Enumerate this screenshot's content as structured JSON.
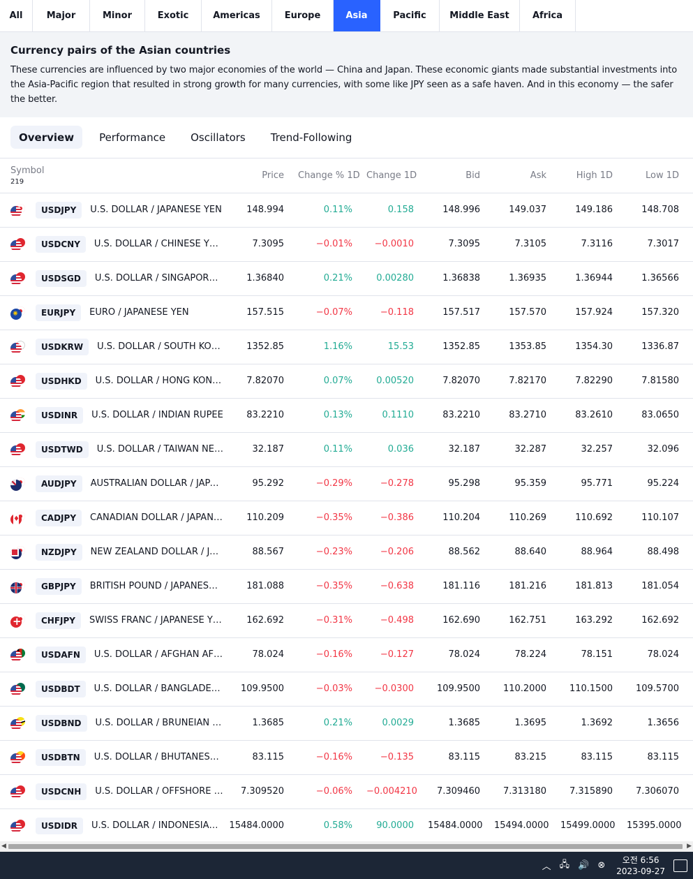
{
  "region_tabs": [
    {
      "label": "All",
      "width": 47,
      "active": false
    },
    {
      "label": "Major",
      "width": 82,
      "active": false
    },
    {
      "label": "Minor",
      "width": 79,
      "active": false
    },
    {
      "label": "Exotic",
      "width": 81,
      "active": false
    },
    {
      "label": "Americas",
      "width": 101,
      "active": false
    },
    {
      "label": "Europe",
      "width": 88,
      "active": false
    },
    {
      "label": "Asia",
      "width": 67,
      "active": true
    },
    {
      "label": "Pacific",
      "width": 85,
      "active": false
    },
    {
      "label": "Middle East",
      "width": 115,
      "active": false
    },
    {
      "label": "Africa",
      "width": 80,
      "active": false
    }
  ],
  "description": {
    "title": "Currency pairs of the Asian countries",
    "text": "These currencies are influenced by two major economies of the world — China and Japan. These economic giants made substantial investments into the Asia-Pacific region that resulted in strong growth for many currencies, with some like JPY seen as a safe haven. And in this economy — the safer the better."
  },
  "view_tabs": [
    {
      "label": "Overview",
      "active": true
    },
    {
      "label": "Performance",
      "active": false
    },
    {
      "label": "Oscillators",
      "active": false
    },
    {
      "label": "Trend-Following",
      "active": false
    }
  ],
  "table": {
    "symbol_header": "Symbol",
    "symbol_count": "219",
    "columns": [
      "Price",
      "Change % 1D",
      "Change 1D",
      "Bid",
      "Ask",
      "High 1D",
      "Low 1D"
    ],
    "rows": [
      {
        "flag1": "f-us",
        "flag2": "c-jp",
        "symbol": "USDJPY",
        "desc": "U.S. DOLLAR / JAPANESE YEN",
        "price": "148.994",
        "chg_pct": "0.11%",
        "chg": "0.158",
        "dir": "pos",
        "bid": "148.996",
        "ask": "149.037",
        "high": "149.186",
        "low": "148.708"
      },
      {
        "flag1": "f-us",
        "flag2": "c-red",
        "symbol": "USDCNY",
        "desc": "U.S. DOLLAR / CHINESE YUAN",
        "price": "7.3095",
        "chg_pct": "−0.01%",
        "chg": "−0.0010",
        "dir": "neg",
        "bid": "7.3095",
        "ask": "7.3105",
        "high": "7.3116",
        "low": "7.3017"
      },
      {
        "flag1": "f-us",
        "flag2": "c-red",
        "symbol": "USDSGD",
        "desc": "U.S. DOLLAR / SINGAPORE D...",
        "price": "1.36840",
        "chg_pct": "0.21%",
        "chg": "0.00280",
        "dir": "pos",
        "bid": "1.36838",
        "ask": "1.36935",
        "high": "1.36944",
        "low": "1.36566"
      },
      {
        "flag1": "f-eu",
        "flag2": "c-jp",
        "symbol": "EURJPY",
        "desc": "EURO / JAPANESE YEN",
        "price": "157.515",
        "chg_pct": "−0.07%",
        "chg": "−0.118",
        "dir": "neg",
        "bid": "157.517",
        "ask": "157.570",
        "high": "157.924",
        "low": "157.320"
      },
      {
        "flag1": "f-us",
        "flag2": "c-kr",
        "symbol": "USDKRW",
        "desc": "U.S. DOLLAR / SOUTH KORE...",
        "price": "1352.85",
        "chg_pct": "1.16%",
        "chg": "15.53",
        "dir": "pos",
        "bid": "1352.85",
        "ask": "1353.85",
        "high": "1354.30",
        "low": "1336.87"
      },
      {
        "flag1": "f-us",
        "flag2": "c-hk",
        "symbol": "USDHKD",
        "desc": "U.S. DOLLAR / HONG KONG ...",
        "price": "7.82070",
        "chg_pct": "0.07%",
        "chg": "0.00520",
        "dir": "pos",
        "bid": "7.82070",
        "ask": "7.82170",
        "high": "7.82290",
        "low": "7.81580"
      },
      {
        "flag1": "f-us",
        "flag2": "c-in",
        "symbol": "USDINR",
        "desc": "U.S. DOLLAR / INDIAN RUPEE",
        "price": "83.2210",
        "chg_pct": "0.13%",
        "chg": "0.1110",
        "dir": "pos",
        "bid": "83.2210",
        "ask": "83.2710",
        "high": "83.2610",
        "low": "83.0650"
      },
      {
        "flag1": "f-us",
        "flag2": "c-tw",
        "symbol": "USDTWD",
        "desc": "U.S. DOLLAR / TAIWAN NEW...",
        "price": "32.187",
        "chg_pct": "0.11%",
        "chg": "0.036",
        "dir": "pos",
        "bid": "32.187",
        "ask": "32.287",
        "high": "32.257",
        "low": "32.096"
      },
      {
        "flag1": "f-au",
        "flag2": "c-jp",
        "symbol": "AUDJPY",
        "desc": "AUSTRALIAN DOLLAR / JAPA...",
        "price": "95.292",
        "chg_pct": "−0.29%",
        "chg": "−0.278",
        "dir": "neg",
        "bid": "95.298",
        "ask": "95.359",
        "high": "95.771",
        "low": "95.224"
      },
      {
        "flag1": "f-ca",
        "flag2": "c-jp",
        "symbol": "CADJPY",
        "desc": "CANADIAN DOLLAR / JAPANE...",
        "price": "110.209",
        "chg_pct": "−0.35%",
        "chg": "−0.386",
        "dir": "neg",
        "bid": "110.204",
        "ask": "110.269",
        "high": "110.692",
        "low": "110.107"
      },
      {
        "flag1": "f-nz",
        "flag2": "c-jp",
        "symbol": "NZDJPY",
        "desc": "NEW ZEALAND DOLLAR / JA...",
        "price": "88.567",
        "chg_pct": "−0.23%",
        "chg": "−0.206",
        "dir": "neg",
        "bid": "88.562",
        "ask": "88.640",
        "high": "88.964",
        "low": "88.498"
      },
      {
        "flag1": "f-gb",
        "flag2": "c-jp",
        "symbol": "GBPJPY",
        "desc": "BRITISH POUND / JAPANESE ...",
        "price": "181.088",
        "chg_pct": "−0.35%",
        "chg": "−0.638",
        "dir": "neg",
        "bid": "181.116",
        "ask": "181.216",
        "high": "181.813",
        "low": "181.054"
      },
      {
        "flag1": "f-ch",
        "flag2": "c-jp",
        "symbol": "CHFJPY",
        "desc": "SWISS FRANC / JAPANESE YEN",
        "price": "162.692",
        "chg_pct": "−0.31%",
        "chg": "−0.498",
        "dir": "neg",
        "bid": "162.690",
        "ask": "162.751",
        "high": "163.292",
        "low": "162.692"
      },
      {
        "flag1": "f-us",
        "flag2": "c-af",
        "symbol": "USDAFN",
        "desc": "U.S. DOLLAR / AFGHAN AFG...",
        "price": "78.024",
        "chg_pct": "−0.16%",
        "chg": "−0.127",
        "dir": "neg",
        "bid": "78.024",
        "ask": "78.224",
        "high": "78.151",
        "low": "78.024"
      },
      {
        "flag1": "f-us",
        "flag2": "c-bd",
        "symbol": "USDBDT",
        "desc": "U.S. DOLLAR / BANGLADESH...",
        "price": "109.9500",
        "chg_pct": "−0.03%",
        "chg": "−0.0300",
        "dir": "neg",
        "bid": "109.9500",
        "ask": "110.2000",
        "high": "110.1500",
        "low": "109.5700"
      },
      {
        "flag1": "f-us",
        "flag2": "c-bn",
        "symbol": "USDBND",
        "desc": "U.S. DOLLAR / BRUNEIAN D...",
        "price": "1.3685",
        "chg_pct": "0.21%",
        "chg": "0.0029",
        "dir": "pos",
        "bid": "1.3685",
        "ask": "1.3695",
        "high": "1.3692",
        "low": "1.3656"
      },
      {
        "flag1": "f-us",
        "flag2": "c-bt",
        "symbol": "USDBTN",
        "desc": "U.S. DOLLAR / BHUTANESE ...",
        "price": "83.115",
        "chg_pct": "−0.16%",
        "chg": "−0.135",
        "dir": "neg",
        "bid": "83.115",
        "ask": "83.215",
        "high": "83.115",
        "low": "83.115"
      },
      {
        "flag1": "f-us",
        "flag2": "c-red",
        "symbol": "USDCNH",
        "desc": "U.S. DOLLAR / OFFSHORE C...",
        "price": "7.309520",
        "chg_pct": "−0.06%",
        "chg": "−0.004210",
        "dir": "neg",
        "bid": "7.309460",
        "ask": "7.313180",
        "high": "7.315890",
        "low": "7.306070"
      },
      {
        "flag1": "f-us",
        "flag2": "c-red",
        "symbol": "USDIDR",
        "desc": "U.S. DOLLAR / INDONESIAN ...",
        "price": "15484.0000",
        "chg_pct": "0.58%",
        "chg": "90.0000",
        "dir": "pos",
        "bid": "15484.0000",
        "ask": "15494.0000",
        "high": "15499.0000",
        "low": "15395.0000"
      }
    ]
  },
  "taskbar": {
    "time": "오전 6:56",
    "date": "2023-09-27"
  }
}
